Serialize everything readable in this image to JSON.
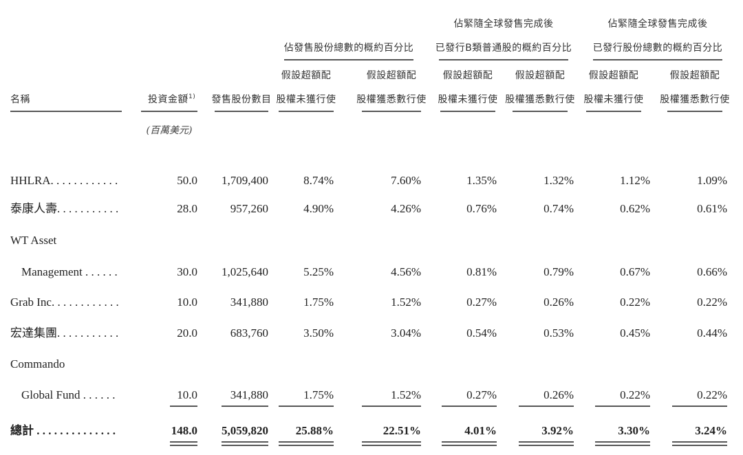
{
  "headers": {
    "name": "名稱",
    "investment": "投資金額",
    "investment_note": "(1)",
    "investment_unit": "(百萬美元)",
    "shares": "發售股份數目",
    "groups": [
      {
        "line1": "",
        "line2": "佔發售股份總數的概約百分比"
      },
      {
        "line1": "佔緊隨全球發售完成後",
        "line2": "已發行B類普通股的概約百分比"
      },
      {
        "line1": "佔緊隨全球發售完成後",
        "line2": "已發行股份總數的概約百分比"
      }
    ],
    "sub_a_line1": "假設超額配",
    "sub_a_line2": "股權未獲行使",
    "sub_b_line1": "假設超額配",
    "sub_b_line2": "股權獲悉數行使"
  },
  "rows": [
    {
      "name": "HHLRA. . . . . . . . . . . .",
      "values": [
        "50.0",
        "1,709,400",
        "8.74%",
        "7.60%",
        "1.35%",
        "1.32%",
        "1.12%",
        "1.09%"
      ]
    },
    {
      "name": "泰康人壽. . . . . . . . . . .",
      "values": [
        "28.0",
        "957,260",
        "4.90%",
        "4.26%",
        "0.76%",
        "0.74%",
        "0.62%",
        "0.61%"
      ]
    },
    {
      "name": "WT Asset",
      "values": []
    },
    {
      "name": "Management . . . . . .",
      "indent": true,
      "values": [
        "30.0",
        "1,025,640",
        "5.25%",
        "4.56%",
        "0.81%",
        "0.79%",
        "0.67%",
        "0.66%"
      ]
    },
    {
      "name": "Grab Inc. . . . . . . . . . . .",
      "values": [
        "10.0",
        "341,880",
        "1.75%",
        "1.52%",
        "0.27%",
        "0.26%",
        "0.22%",
        "0.22%"
      ]
    },
    {
      "name": "宏達集團. . . . . . . . . . .",
      "values": [
        "20.0",
        "683,760",
        "3.50%",
        "3.04%",
        "0.54%",
        "0.53%",
        "0.45%",
        "0.44%"
      ]
    },
    {
      "name": "Commando",
      "values": []
    },
    {
      "name": "Global Fund . . . . . .",
      "indent": true,
      "values": [
        "10.0",
        "341,880",
        "1.75%",
        "1.52%",
        "0.27%",
        "0.26%",
        "0.22%",
        "0.22%"
      ]
    }
  ],
  "total": {
    "name": "總計 . . . . . . . . . . . . . .",
    "values": [
      "148.0",
      "5,059,820",
      "25.88%",
      "22.51%",
      "4.01%",
      "3.92%",
      "3.30%",
      "3.24%"
    ]
  }
}
